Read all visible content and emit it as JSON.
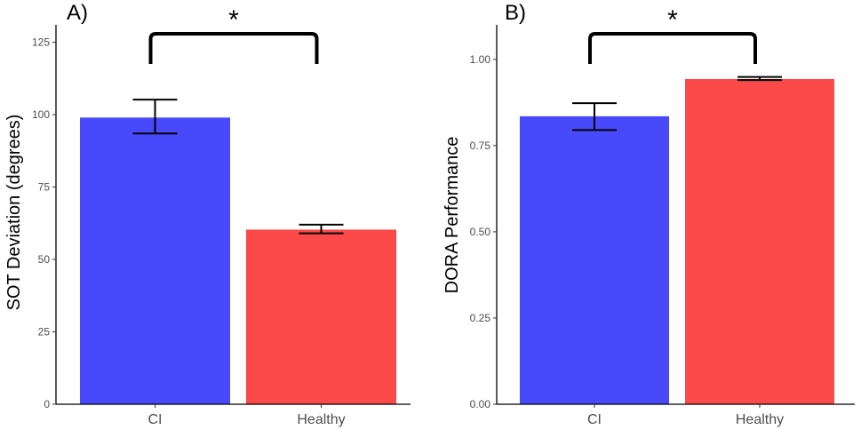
{
  "chart_data": [
    {
      "type": "bar",
      "panel_label": "A)",
      "title": "",
      "xlabel": "",
      "ylabel": "SOT Deviation (degrees)",
      "categories": [
        "CI",
        "Healthy"
      ],
      "values": [
        99,
        60.3
      ],
      "error_low": [
        93.5,
        59.0
      ],
      "error_high": [
        105.2,
        62.0
      ],
      "colors": [
        "#4949fc",
        "#fc4949"
      ],
      "ylim": [
        0,
        131
      ],
      "yticks": [
        0,
        25,
        50,
        75,
        100,
        125
      ],
      "ytick_labels": [
        "0",
        "25",
        "50",
        "75",
        "100",
        "125"
      ],
      "significance": {
        "between": [
          "CI",
          "Healthy"
        ],
        "label": "*"
      },
      "grid": false
    },
    {
      "type": "bar",
      "panel_label": "B)",
      "title": "",
      "xlabel": "",
      "ylabel": "DORA Performance",
      "categories": [
        "CI",
        "Healthy"
      ],
      "values": [
        0.835,
        0.943
      ],
      "error_low": [
        0.795,
        0.94
      ],
      "error_high": [
        0.873,
        0.949
      ],
      "colors": [
        "#4949fc",
        "#fc4949"
      ],
      "ylim": [
        0,
        1.1
      ],
      "yticks": [
        0,
        0.25,
        0.5,
        0.75,
        1.0
      ],
      "ytick_labels": [
        "0.00",
        "0.25",
        "0.50",
        "0.75",
        "1.00"
      ],
      "significance": {
        "between": [
          "CI",
          "Healthy"
        ],
        "label": "*"
      },
      "grid": false
    }
  ]
}
